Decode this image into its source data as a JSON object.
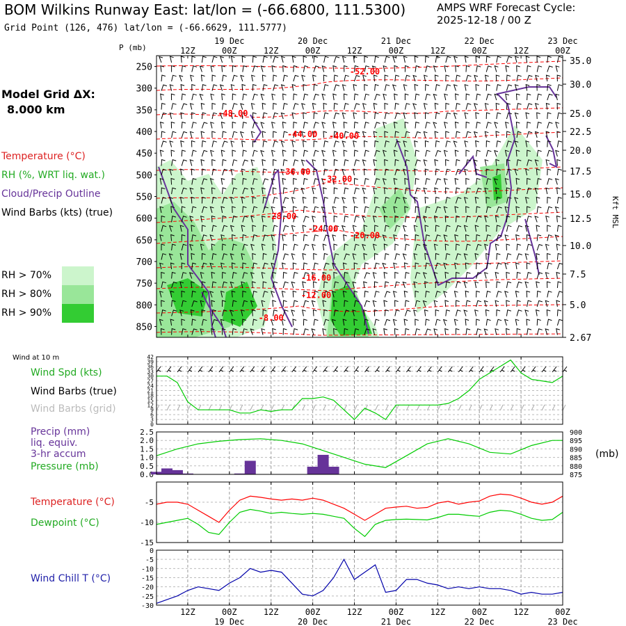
{
  "header": {
    "title": "BOM Wilkins Runway East:  lat/lon = (-66.6800, 111.5300)",
    "grid_point": "Grid Point (126, 476) lat/lon = (-66.6629, 111.5777)",
    "cycle_line1": "AMPS WRF Forecast Cycle:",
    "cycle_line2": "2025-12-18 / 00  Z"
  },
  "left_panel": {
    "model_grid_label": "Model Grid ΔX:",
    "model_grid_value": "8.000 km",
    "legend_temperature": "Temperature (°C)",
    "legend_rh": "RH (%, WRT liq. wat.)",
    "legend_cloud": "Cloud/Precip Outline",
    "legend_wind": "Wind Barbs (kts) (true)",
    "rh_levels": [
      "RH > 70%",
      "RH > 80%",
      "RH > 90%"
    ],
    "p_axis_label": "P (mb)",
    "kft_label": "Kft MSL"
  },
  "lower_labels": {
    "wind10m": "Wind at 10 m",
    "wind_spd": "Wind Spd (kts)",
    "wind_barbs_true": "Wind Barbs (true)",
    "wind_barbs_grid": "Wind Barbs (grid)",
    "precip1": "Precip (mm)",
    "precip2": "liq. equiv.",
    "precip3": "3-hr accum",
    "pressure": "Pressure (mb)",
    "mb_unit": "(mb)",
    "temperature": "Temperature (°C)",
    "dewpoint": "Dewpoint (°C)",
    "windchill": "Wind Chill T (°C)"
  },
  "colors": {
    "temperature": "#ff0000",
    "rh_green": "#00cc00",
    "cloud_outline": "#663399",
    "wind_chill": "#0000aa",
    "precip_bar": "#663399",
    "grid_barbs": "#aaaaaa",
    "rh70": "#ccf5cc",
    "rh80": "#99e699",
    "rh90": "#33cc33"
  },
  "chart_data": [
    {
      "type": "heatmap",
      "name": "cross-section",
      "x_ticks": [
        "12Z",
        "00Z",
        "12Z",
        "00Z",
        "12Z",
        "00Z",
        "12Z",
        "00Z",
        "12Z",
        "00Z"
      ],
      "x_ticks_hours": [
        12,
        24,
        36,
        48,
        60,
        72,
        84,
        96,
        108,
        120
      ],
      "x_dates": [
        "19 Dec",
        "20 Dec",
        "21 Dec",
        "22 Dec",
        "23 Dec"
      ],
      "x_dates_hours": [
        24,
        48,
        72,
        96,
        120
      ],
      "pressure_ticks": [
        250,
        300,
        350,
        400,
        450,
        500,
        550,
        600,
        650,
        700,
        750,
        800,
        850
      ],
      "kft_ticks": [
        "35.0",
        "30.0",
        "25.0",
        "22.5",
        "20.0",
        "17.5",
        "15.0",
        "12.5",
        "10.0",
        "7.5",
        "5.0",
        "2.67"
      ],
      "temperature_contour_labels": [
        "-52.00",
        "-48.00",
        "-44.00",
        "-40.00",
        "-36.00",
        "-32.00",
        "-28.00",
        "-24.00",
        "-20.00",
        "-16.00",
        "-12.00",
        "-8.00"
      ],
      "temperature_label_positions": [
        {
          "label": "-52.00",
          "hour": 63,
          "p": 262
        },
        {
          "label": "-48.00",
          "hour": 25,
          "p": 358
        },
        {
          "label": "-44.00",
          "hour": 45,
          "p": 406
        },
        {
          "label": "-40.00",
          "hour": 57,
          "p": 410
        },
        {
          "label": "-36.00",
          "hour": 43,
          "p": 493
        },
        {
          "label": "-32.00",
          "hour": 55,
          "p": 510
        },
        {
          "label": "-28.00",
          "hour": 39,
          "p": 596
        },
        {
          "label": "-24.00",
          "hour": 51,
          "p": 625
        },
        {
          "label": "-20.00",
          "hour": 63,
          "p": 640
        },
        {
          "label": "-16.00",
          "hour": 49,
          "p": 738
        },
        {
          "label": "-12.00",
          "hour": 49,
          "p": 778
        },
        {
          "label": "-8.00",
          "hour": 36,
          "p": 830
        }
      ],
      "ylim": [
        225,
        875
      ],
      "xlim": [
        3,
        120
      ]
    },
    {
      "type": "line",
      "name": "wind-speed",
      "y_ticks": [
        0,
        3,
        6,
        9,
        12,
        15,
        18,
        21,
        24,
        27,
        30,
        33,
        36,
        39,
        42
      ],
      "ylim": [
        0,
        42
      ],
      "x": [
        3,
        6,
        9,
        12,
        15,
        18,
        21,
        24,
        27,
        30,
        33,
        36,
        39,
        42,
        45,
        48,
        51,
        54,
        57,
        60,
        63,
        66,
        69,
        72,
        75,
        78,
        81,
        84,
        87,
        90,
        93,
        96,
        99,
        102,
        105,
        108,
        111,
        114,
        117,
        120
      ],
      "values": [
        30,
        30,
        26,
        14,
        9,
        9,
        9,
        9,
        7,
        7,
        9,
        8,
        9,
        9,
        16,
        16,
        17,
        15,
        9,
        3,
        10,
        7,
        3,
        12,
        12,
        12,
        12,
        12,
        13,
        16,
        21,
        28,
        32,
        36,
        40,
        32,
        28,
        27,
        26,
        30
      ]
    },
    {
      "type": "bar",
      "name": "precip",
      "ylim": [
        0,
        2.5
      ],
      "y_ticks": [
        "0.0",
        "0.5",
        "1.0",
        "1.5",
        "2.0",
        "2.5"
      ],
      "x": [
        3,
        6,
        9,
        12,
        27,
        30,
        48,
        51,
        54
      ],
      "values": [
        0.15,
        0.35,
        0.25,
        0.05,
        0.05,
        0.8,
        0.45,
        1.15,
        0.45
      ],
      "pressure_axis": {
        "ylim": [
          875,
          900
        ],
        "ticks": [
          875,
          880,
          885,
          890,
          895,
          900
        ]
      },
      "pressure_x": [
        3,
        9,
        15,
        21,
        27,
        33,
        39,
        45,
        51,
        57,
        63,
        69,
        75,
        81,
        87,
        93,
        99,
        105,
        111,
        117,
        120
      ],
      "pressure_values": [
        886,
        890,
        893,
        894.5,
        895.5,
        896,
        895,
        893,
        889,
        885,
        881,
        879,
        886,
        893,
        896,
        893,
        888,
        887,
        892,
        895,
        895
      ]
    },
    {
      "type": "line",
      "name": "temperature-dewpoint",
      "ylim": [
        -15,
        0
      ],
      "y_ticks": [
        -15,
        -10,
        -5
      ],
      "x": [
        3,
        6,
        9,
        12,
        15,
        18,
        21,
        24,
        27,
        30,
        33,
        36,
        39,
        42,
        45,
        48,
        51,
        54,
        57,
        60,
        63,
        66,
        69,
        72,
        75,
        78,
        81,
        84,
        87,
        90,
        93,
        96,
        99,
        102,
        105,
        108,
        111,
        114,
        117,
        120
      ],
      "series": [
        {
          "name": "Temperature",
          "values": [
            -5.5,
            -5.0,
            -5.0,
            -5.5,
            -7.0,
            -8.5,
            -10.0,
            -7.0,
            -4.5,
            -3.5,
            -3.8,
            -4.2,
            -4.5,
            -4.2,
            -4.5,
            -4.0,
            -4.5,
            -5.5,
            -6.5,
            -8.0,
            -9.5,
            -8.0,
            -6.5,
            -6.2,
            -6.0,
            -6.5,
            -6.3,
            -5.2,
            -4.8,
            -5.5,
            -5.0,
            -4.7,
            -3.5,
            -3.0,
            -3.2,
            -4.0,
            -5.0,
            -5.5,
            -5.0,
            -3.5
          ]
        },
        {
          "name": "Dewpoint",
          "values": [
            -10.5,
            -10.0,
            -9.5,
            -9.0,
            -10.5,
            -12.5,
            -13.0,
            -10.0,
            -7.5,
            -6.8,
            -7.2,
            -7.8,
            -7.5,
            -7.8,
            -8.0,
            -7.8,
            -8.0,
            -8.5,
            -9.0,
            -11.5,
            -13.5,
            -10.5,
            -9.5,
            -9.3,
            -9.2,
            -9.3,
            -9.4,
            -8.8,
            -8.0,
            -8.0,
            -8.3,
            -8.5,
            -7.5,
            -7.0,
            -7.2,
            -8.0,
            -9.0,
            -9.5,
            -9.3,
            -7.5
          ]
        }
      ]
    },
    {
      "type": "line",
      "name": "wind-chill",
      "ylim": [
        -30,
        0
      ],
      "y_ticks": [
        -30,
        -25,
        -20,
        -15,
        -10,
        -5,
        0
      ],
      "x": [
        3,
        6,
        9,
        12,
        15,
        18,
        21,
        24,
        27,
        30,
        33,
        36,
        39,
        42,
        45,
        48,
        51,
        54,
        57,
        60,
        63,
        66,
        69,
        72,
        75,
        78,
        81,
        84,
        87,
        90,
        93,
        96,
        99,
        102,
        105,
        108,
        111,
        114,
        117,
        120
      ],
      "values": [
        -29,
        -27,
        -25,
        -22,
        -20,
        -21,
        -22,
        -18,
        -15,
        -10,
        -12,
        -11,
        -12,
        -18,
        -24,
        -25,
        -22,
        -15,
        -5,
        -16,
        -12,
        -8,
        -23,
        -22,
        -16,
        -16,
        -18,
        -19,
        -21,
        -20,
        -21,
        -20,
        -21,
        -21,
        -22,
        -24,
        -23,
        -24,
        -24,
        -23
      ]
    }
  ]
}
